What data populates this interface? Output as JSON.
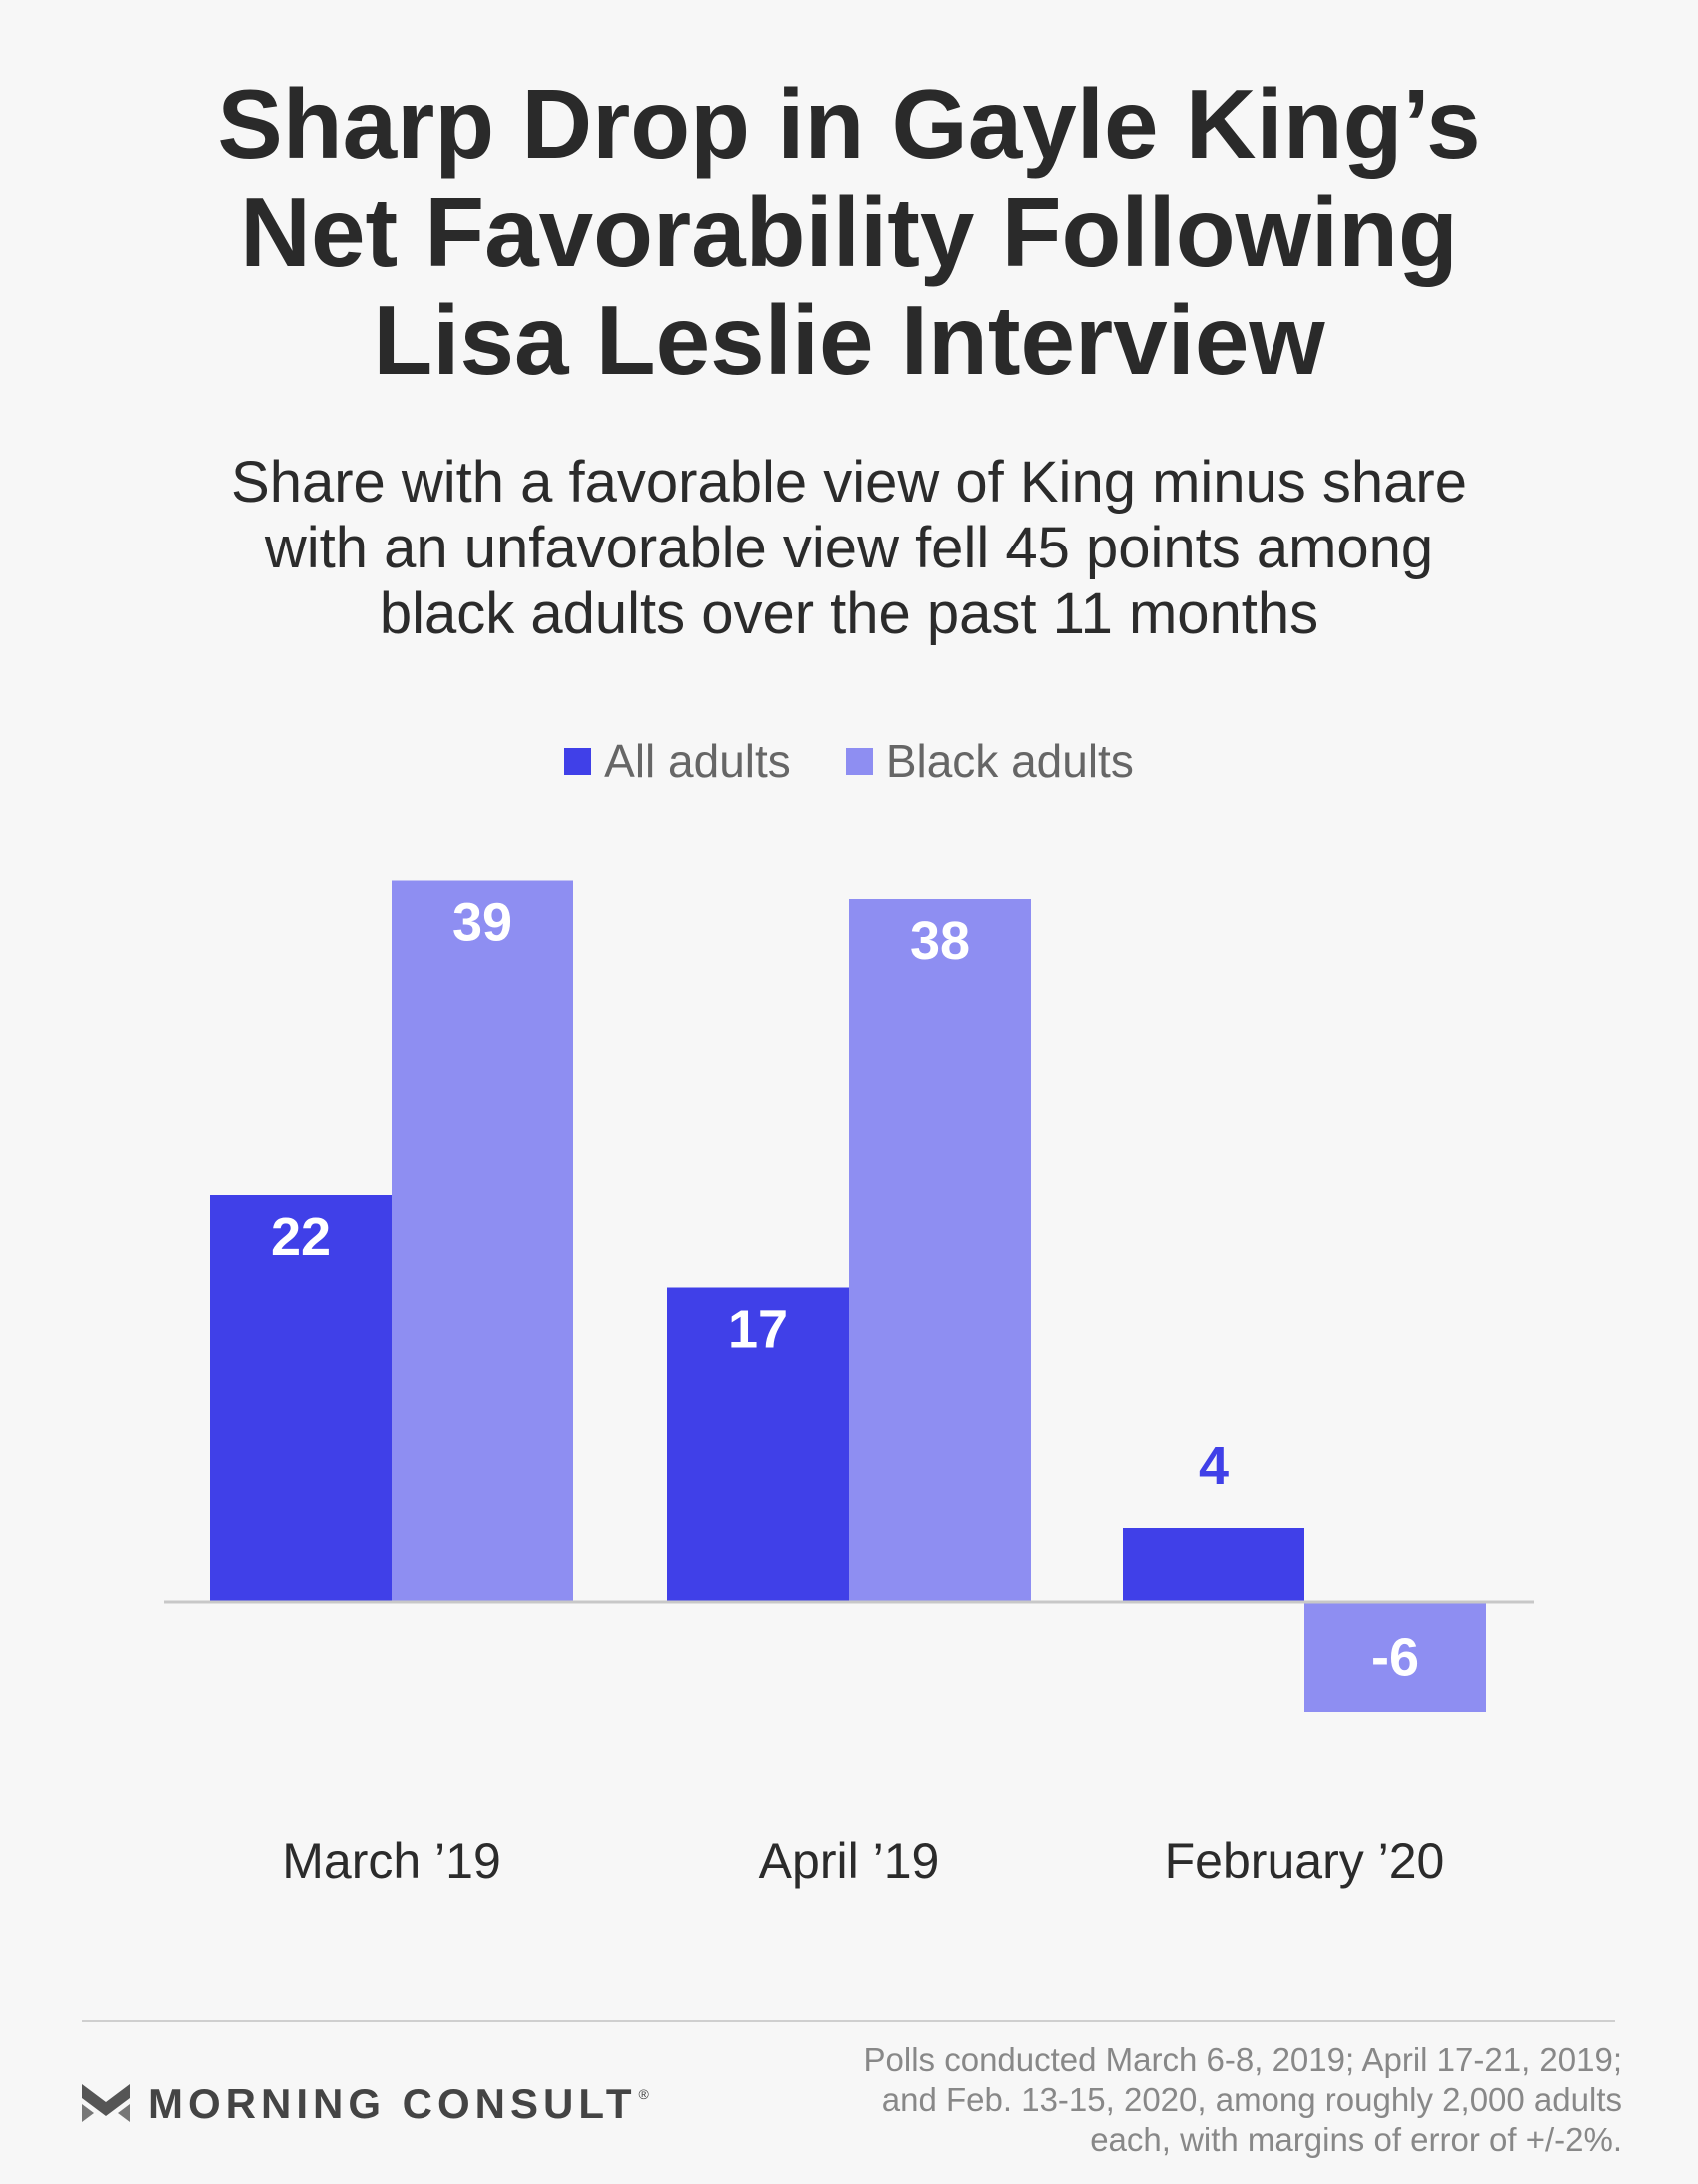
{
  "title_lines": [
    "Sharp Drop in Gayle King’s",
    "Net Favorability Following",
    "Lisa Leslie Interview"
  ],
  "subtitle_lines": [
    "Share with a favorable view of King minus share",
    "with an unfavorable view fell 45 points among",
    "black adults over the past 11 months"
  ],
  "colors": {
    "all_adults": "#4040e8",
    "black_adults": "#8e8ef2",
    "background": "#f7f7f7"
  },
  "chart_data": {
    "type": "bar",
    "categories": [
      "March ’19",
      "April ’19",
      "February ’20"
    ],
    "series": [
      {
        "name": "All adults",
        "values": [
          22,
          17,
          4
        ]
      },
      {
        "name": "Black adults",
        "values": [
          39,
          38,
          -6
        ]
      }
    ],
    "ylim": [
      -6,
      39
    ],
    "legend_position": "top-center",
    "grid": false,
    "data_labels": true
  },
  "footer": {
    "logo_text": "MORNING CONSULT",
    "logo_mark": "®",
    "note_lines": [
      "Polls conducted March 6-8, 2019; April 17-21, 2019;",
      "and Feb. 13-15, 2020, among roughly 2,000 adults",
      "each, with margins of error of +/-2%."
    ]
  }
}
